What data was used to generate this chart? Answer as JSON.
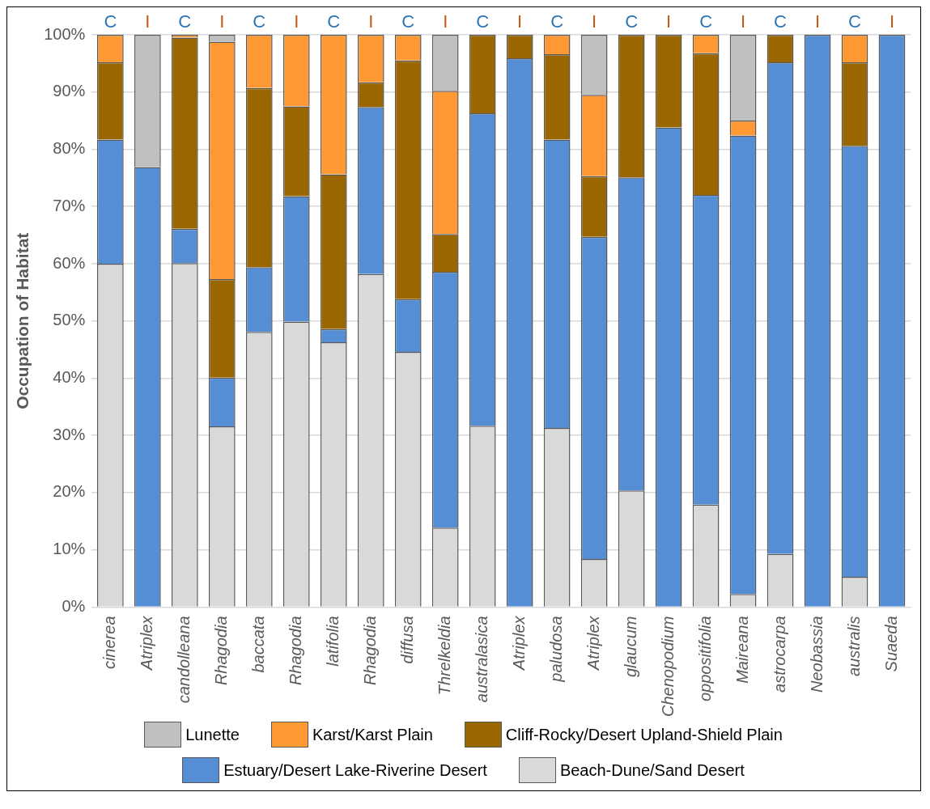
{
  "chart_data": {
    "type": "bar",
    "stacked": true,
    "ylabel": "Occupation of Habitat",
    "categories": [
      "cinerea",
      "Atriplex",
      "candolleana",
      "Rhagodia",
      "baccata",
      "Rhagodia",
      "latifolia",
      "Rhagodia",
      "diffusa",
      "Threlkeldia",
      "australasica",
      "Atriplex",
      "paludosa",
      "Atriplex",
      "glaucum",
      "Chenopodium",
      "oppositifolia",
      "Maireana",
      "astrocarpa",
      "Neobassia",
      "australis",
      "Suaeda"
    ],
    "series": [
      {
        "name": "Beach-Dune/Sand Desert",
        "color": "#d9d9d9",
        "values": [
          60,
          0,
          60.1,
          31.6,
          48.1,
          49.9,
          46.3,
          58.2,
          44.6,
          13.9,
          31.7,
          0,
          31.3,
          8.4,
          20.4,
          0,
          17.9,
          2.3,
          9.3,
          0,
          5.3,
          0
        ]
      },
      {
        "name": "Estuary/Desert Lake-Riverine Desert",
        "color": "#558ed5",
        "values": [
          21.7,
          76.9,
          6.0,
          8.5,
          11.3,
          21.9,
          2.3,
          29.2,
          9.2,
          44.7,
          54.6,
          95.9,
          50.4,
          56.3,
          54.7,
          83.8,
          54.1,
          80.1,
          85.9,
          100,
          75.3,
          100
        ]
      },
      {
        "name": "Cliff-Rocky/Desert Upland-Shield Plain",
        "color": "#996600",
        "values": [
          13.5,
          0,
          33.4,
          17.2,
          31.3,
          15.7,
          27.0,
          4.3,
          41.7,
          6.6,
          13.7,
          4.1,
          14.9,
          10.6,
          24.9,
          16.2,
          24.8,
          0,
          4.8,
          0,
          14.6,
          0
        ]
      },
      {
        "name": "Karst/Karst Plain",
        "color": "#ff9933",
        "values": [
          4.8,
          0,
          0.5,
          41.5,
          9.3,
          12.5,
          24.4,
          8.3,
          4.5,
          25.0,
          0,
          0,
          3.4,
          14.2,
          0,
          0,
          3.2,
          2.6,
          0,
          0,
          4.8,
          0
        ]
      },
      {
        "name": "Lunette",
        "color": "#c0c0c0",
        "values": [
          0,
          23.1,
          0,
          1.2,
          0,
          0,
          0,
          0,
          0,
          9.8,
          0,
          0,
          0,
          10.5,
          0,
          0,
          0,
          15.0,
          0,
          0,
          0,
          0
        ]
      }
    ],
    "ylim": [
      0,
      100
    ],
    "yticks": [
      {
        "value": 0,
        "label": "0%"
      },
      {
        "value": 10,
        "label": "10%"
      },
      {
        "value": 20,
        "label": "20%"
      },
      {
        "value": 30,
        "label": "30%"
      },
      {
        "value": 40,
        "label": "40%"
      },
      {
        "value": 50,
        "label": "50%"
      },
      {
        "value": 60,
        "label": "60%"
      },
      {
        "value": 70,
        "label": "70%"
      },
      {
        "value": 80,
        "label": "80%"
      },
      {
        "value": 90,
        "label": "90%"
      },
      {
        "value": 100,
        "label": "100%"
      }
    ],
    "grid": "y",
    "legend": "bottom",
    "annotations": [
      "C",
      "I",
      "C",
      "I",
      "C",
      "I",
      "C",
      "I",
      "C",
      "I",
      "C",
      "I",
      "C",
      "I",
      "C",
      "I",
      "C",
      "I",
      "C",
      "I",
      "C",
      "I"
    ]
  }
}
